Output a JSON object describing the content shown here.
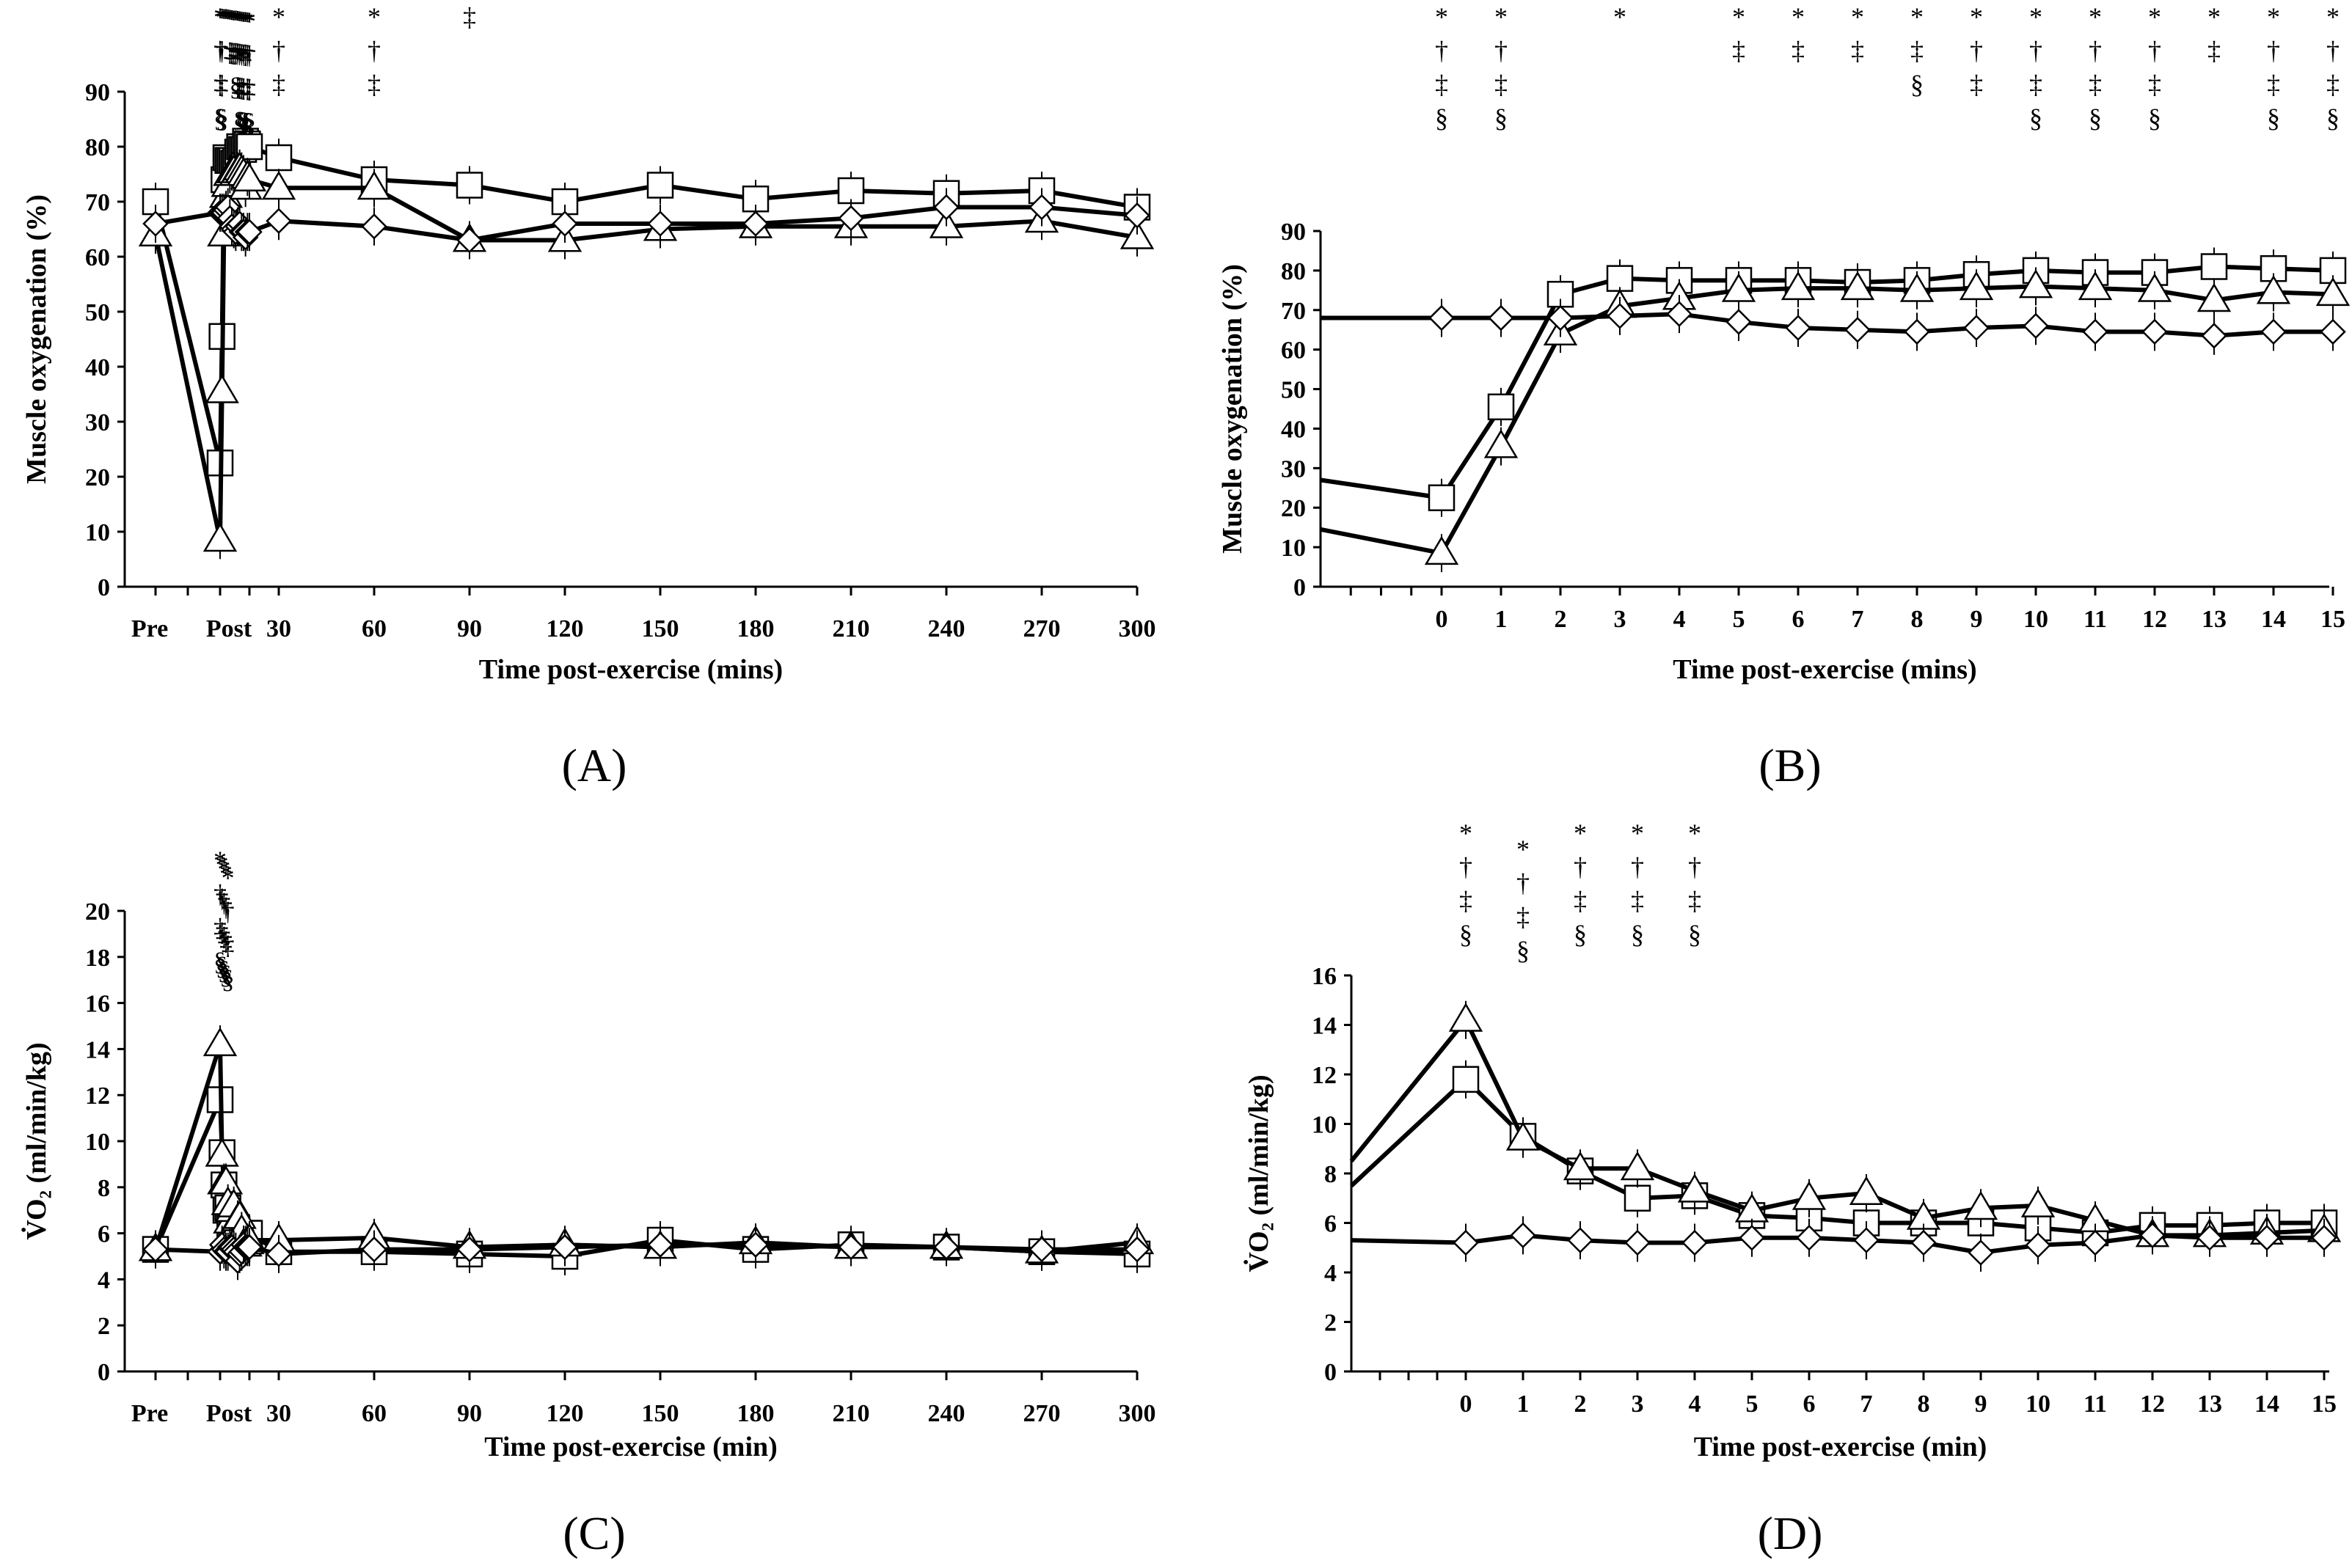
{
  "panel_labels": [
    "(A)",
    "(B)",
    "(C)",
    "(D)"
  ],
  "chart_data": [
    {
      "id": "A",
      "type": "line",
      "ylabel": "Muscle oxygenation (%)",
      "xlabel": "Time post-exercise (mins)",
      "ylim": [
        0,
        90
      ],
      "yticks": [
        "0",
        "10",
        "20",
        "30",
        "40",
        "50",
        "60",
        "70",
        "80",
        "90"
      ],
      "xtick_labels": [
        "Pre",
        "Post",
        "30",
        "60",
        "90",
        "120",
        "150",
        "180",
        "210",
        "240",
        "270",
        "300"
      ],
      "series": [
        {
          "name": "square",
          "marker": "square",
          "x": [
            -10,
            0,
            1,
            2,
            3,
            4,
            5,
            6,
            7,
            8,
            9,
            10,
            11,
            12,
            13,
            14,
            15,
            30,
            60,
            90,
            120,
            150,
            180,
            210,
            240,
            270,
            300
          ],
          "values": [
            70,
            22.5,
            45.5,
            74,
            78,
            77.5,
            77.5,
            77.5,
            77,
            77.5,
            79,
            80,
            79.5,
            79.5,
            81,
            80.5,
            80,
            78,
            74,
            73,
            70,
            73,
            70.5,
            72,
            71.5,
            72,
            69
          ]
        },
        {
          "name": "triangle",
          "marker": "triangle",
          "x": [
            -10,
            0,
            1,
            2,
            3,
            4,
            5,
            6,
            7,
            8,
            9,
            10,
            11,
            12,
            13,
            14,
            15,
            30,
            60,
            90,
            120,
            150,
            180,
            210,
            240,
            270,
            300
          ],
          "values": [
            64,
            8.5,
            35.5,
            64,
            71,
            73,
            75,
            75.5,
            75.5,
            75,
            75.5,
            76,
            75.5,
            75,
            72.5,
            74.5,
            74,
            72.5,
            72.5,
            63,
            63,
            65,
            65.5,
            65.5,
            65.5,
            66.5,
            63.5
          ]
        },
        {
          "name": "diamond",
          "marker": "diamond",
          "x": [
            -10,
            0,
            1,
            2,
            3,
            4,
            5,
            6,
            7,
            8,
            9,
            10,
            11,
            12,
            13,
            14,
            15,
            30,
            60,
            90,
            120,
            150,
            180,
            210,
            240,
            270,
            300
          ],
          "values": [
            66,
            68,
            68,
            68,
            68.5,
            69,
            67,
            65.5,
            65,
            64.5,
            65.5,
            66,
            64.5,
            64.5,
            63.5,
            64.5,
            64.5,
            66.5,
            65.5,
            63,
            66,
            66,
            66,
            67,
            69,
            69,
            67.5
          ]
        }
      ],
      "significance": [
        {
          "x": 0,
          "marks": [
            "*",
            "†",
            "‡",
            "§"
          ]
        },
        {
          "x": 1,
          "marks": [
            "*",
            "†",
            "‡",
            "§"
          ]
        },
        {
          "x": 2,
          "marks": [
            "*"
          ]
        },
        {
          "x": 3,
          "marks": [
            "*"
          ]
        },
        {
          "x": 4,
          "marks": [
            "*"
          ]
        },
        {
          "x": 5,
          "marks": [
            "*",
            "‡"
          ]
        },
        {
          "x": 6,
          "marks": [
            "*",
            "‡"
          ]
        },
        {
          "x": 7,
          "marks": [
            "*",
            "‡"
          ]
        },
        {
          "x": 8,
          "marks": [
            "*",
            "‡",
            "§"
          ]
        },
        {
          "x": 9,
          "marks": [
            "*",
            "†",
            "‡"
          ]
        },
        {
          "x": 10,
          "marks": [
            "*",
            "†",
            "‡",
            "§"
          ]
        },
        {
          "x": 11,
          "marks": [
            "*",
            "†",
            "‡",
            "§"
          ]
        },
        {
          "x": 12,
          "marks": [
            "*",
            "†",
            "‡",
            "§"
          ]
        },
        {
          "x": 13,
          "marks": [
            "*",
            "‡"
          ]
        },
        {
          "x": 14,
          "marks": [
            "*",
            "†",
            "‡",
            "§"
          ]
        },
        {
          "x": 15,
          "marks": [
            "*",
            "†",
            "‡",
            "§"
          ]
        },
        {
          "x": 30,
          "marks": [
            "*",
            "†",
            "‡"
          ]
        },
        {
          "x": 60,
          "marks": [
            "*",
            "†",
            "‡"
          ]
        },
        {
          "x": 90,
          "marks": [
            "‡"
          ]
        }
      ]
    },
    {
      "id": "B",
      "type": "line",
      "ylabel": "Muscle oxygenation (%)",
      "xlabel": "Time post-exercise (mins)",
      "ylim": [
        0,
        90
      ],
      "yticks": [
        "0",
        "10",
        "20",
        "30",
        "40",
        "50",
        "60",
        "70",
        "80",
        "90"
      ],
      "xtick_labels": [
        "0",
        "1",
        "2",
        "3",
        "4",
        "5",
        "6",
        "7",
        "8",
        "9",
        "10",
        "11",
        "12",
        "13",
        "14",
        "15"
      ],
      "series": [
        {
          "name": "square",
          "marker": "square",
          "x": [
            0,
            1,
            2,
            3,
            4,
            5,
            6,
            7,
            8,
            9,
            10,
            11,
            12,
            13,
            14,
            15
          ],
          "values": [
            22.5,
            45.5,
            74,
            78,
            77.5,
            77.5,
            77.5,
            77,
            77.5,
            79,
            80,
            79.5,
            79.5,
            81,
            80.5,
            80
          ],
          "lead_in": 27
        },
        {
          "name": "triangle",
          "marker": "triangle",
          "x": [
            0,
            1,
            2,
            3,
            4,
            5,
            6,
            7,
            8,
            9,
            10,
            11,
            12,
            13,
            14,
            15
          ],
          "values": [
            8.5,
            35.5,
            64,
            71,
            73,
            75,
            75.5,
            75.5,
            75,
            75.5,
            76,
            75.5,
            75,
            72.5,
            74.5,
            74
          ],
          "lead_in": 14.5
        },
        {
          "name": "diamond",
          "marker": "diamond",
          "x": [
            0,
            1,
            2,
            3,
            4,
            5,
            6,
            7,
            8,
            9,
            10,
            11,
            12,
            13,
            14,
            15
          ],
          "values": [
            68,
            68,
            68,
            68.5,
            69,
            67,
            65.5,
            65,
            64.5,
            65.5,
            66,
            64.5,
            64.5,
            63.5,
            64.5,
            64.5
          ],
          "lead_in": 68
        }
      ],
      "significance": [
        {
          "x": 0,
          "marks": [
            "*",
            "†",
            "‡",
            "§"
          ]
        },
        {
          "x": 1,
          "marks": [
            "*",
            "†",
            "‡",
            "§"
          ]
        },
        {
          "x": 3,
          "marks": [
            "*"
          ]
        },
        {
          "x": 5,
          "marks": [
            "*",
            "‡"
          ]
        },
        {
          "x": 6,
          "marks": [
            "*",
            "‡"
          ]
        },
        {
          "x": 7,
          "marks": [
            "*",
            "‡"
          ]
        },
        {
          "x": 8,
          "marks": [
            "*",
            "‡",
            "§"
          ]
        },
        {
          "x": 9,
          "marks": [
            "*",
            "†",
            "‡"
          ]
        },
        {
          "x": 10,
          "marks": [
            "*",
            "†",
            "‡",
            "§"
          ]
        },
        {
          "x": 11,
          "marks": [
            "*",
            "†",
            "‡",
            "§"
          ]
        },
        {
          "x": 12,
          "marks": [
            "*",
            "†",
            "‡",
            "§"
          ]
        },
        {
          "x": 13,
          "marks": [
            "*",
            "‡"
          ]
        },
        {
          "x": 14,
          "marks": [
            "*",
            "†",
            "‡",
            "§"
          ]
        },
        {
          "x": 15,
          "marks": [
            "*",
            "†",
            "‡",
            "§"
          ]
        }
      ]
    },
    {
      "id": "C",
      "type": "line",
      "ylabel": "V̇O₂ (ml/min/kg)",
      "xlabel": "Time post-exercise (min)",
      "ylim": [
        0,
        20
      ],
      "yticks": [
        "0",
        "2",
        "4",
        "6",
        "8",
        "10",
        "12",
        "14",
        "16",
        "18",
        "20"
      ],
      "xtick_labels": [
        "Pre",
        "Post",
        "30",
        "60",
        "90",
        "120",
        "150",
        "180",
        "210",
        "240",
        "270",
        "300"
      ],
      "series": [
        {
          "name": "square",
          "marker": "square",
          "x": [
            -10,
            0,
            1,
            2,
            3,
            4,
            5,
            6,
            7,
            8,
            9,
            10,
            11,
            12,
            13,
            14,
            15,
            30,
            60,
            90,
            120,
            150,
            180,
            210,
            240,
            270,
            300
          ],
          "values": [
            5.3,
            11.8,
            9.5,
            8.1,
            7,
            7.1,
            6.3,
            6.2,
            6,
            6,
            6,
            5.8,
            5.6,
            5.9,
            5.9,
            6,
            6,
            5.2,
            5.2,
            5.1,
            5,
            5.7,
            5.3,
            5.5,
            5.4,
            5.2,
            5.1
          ]
        },
        {
          "name": "triangle",
          "marker": "triangle",
          "x": [
            -10,
            0,
            1,
            2,
            3,
            4,
            5,
            6,
            7,
            8,
            9,
            10,
            11,
            12,
            13,
            14,
            15,
            30,
            60,
            90,
            120,
            150,
            180,
            210,
            240,
            270,
            300
          ],
          "values": [
            5.3,
            14.2,
            9.4,
            8.2,
            8.2,
            7.3,
            6.5,
            7,
            7.2,
            6.2,
            6.6,
            6.7,
            6.1,
            5.5,
            5.5,
            5.6,
            5.7,
            5.7,
            5.8,
            5.4,
            5.5,
            5.4,
            5.6,
            5.4,
            5.4,
            5.2,
            5.6
          ]
        },
        {
          "name": "diamond",
          "marker": "diamond",
          "x": [
            -10,
            0,
            1,
            2,
            3,
            4,
            5,
            6,
            7,
            8,
            9,
            10,
            11,
            12,
            13,
            14,
            15,
            30,
            60,
            90,
            120,
            150,
            180,
            210,
            240,
            270,
            300
          ],
          "values": [
            5.3,
            5.2,
            5.5,
            5.3,
            5.2,
            5.2,
            5.4,
            5.4,
            5.3,
            5.2,
            4.8,
            5.1,
            5.2,
            5.5,
            5.4,
            5.4,
            5.4,
            5.1,
            5.3,
            5.3,
            5.4,
            5.5,
            5.5,
            5.4,
            5.4,
            5.3,
            5.3
          ]
        }
      ],
      "significance": [
        {
          "x": 0,
          "marks": [
            "*",
            "†",
            "‡",
            "§"
          ]
        },
        {
          "x": 1,
          "marks": [
            "*",
            "†",
            "‡",
            "§"
          ]
        },
        {
          "x": 2,
          "marks": [
            "*",
            "†",
            "‡",
            "§"
          ]
        },
        {
          "x": 3,
          "marks": [
            "*",
            "†",
            "‡",
            "§"
          ]
        },
        {
          "x": 4,
          "marks": [
            "*",
            "†",
            "‡",
            "§"
          ]
        }
      ]
    },
    {
      "id": "D",
      "type": "line",
      "ylabel": "V̇O₂ (ml/min/kg)",
      "xlabel": "Time post-exercise (min)",
      "ylim": [
        0,
        16
      ],
      "yticks": [
        "0",
        "2",
        "4",
        "6",
        "8",
        "10",
        "12",
        "14",
        "16"
      ],
      "xtick_labels": [
        "0",
        "1",
        "2",
        "3",
        "4",
        "5",
        "6",
        "7",
        "8",
        "9",
        "10",
        "11",
        "12",
        "13",
        "14",
        "15"
      ],
      "series": [
        {
          "name": "square",
          "marker": "square",
          "x": [
            0,
            1,
            2,
            3,
            4,
            5,
            6,
            7,
            8,
            9,
            10,
            11,
            12,
            13,
            14,
            15
          ],
          "values": [
            11.8,
            9.5,
            8.1,
            7,
            7.1,
            6.3,
            6.2,
            6,
            6,
            6,
            5.8,
            5.6,
            5.9,
            5.9,
            6,
            6
          ],
          "lead_in": 7.5
        },
        {
          "name": "triangle",
          "marker": "triangle",
          "x": [
            0,
            1,
            2,
            3,
            4,
            5,
            6,
            7,
            8,
            9,
            10,
            11,
            12,
            13,
            14,
            15
          ],
          "values": [
            14.2,
            9.4,
            8.2,
            8.2,
            7.3,
            6.5,
            7,
            7.2,
            6.2,
            6.6,
            6.7,
            6.1,
            5.5,
            5.5,
            5.6,
            5.7
          ],
          "lead_in": 8.5
        },
        {
          "name": "diamond",
          "marker": "diamond",
          "x": [
            0,
            1,
            2,
            3,
            4,
            5,
            6,
            7,
            8,
            9,
            10,
            11,
            12,
            13,
            14,
            15
          ],
          "values": [
            5.2,
            5.5,
            5.3,
            5.2,
            5.2,
            5.4,
            5.4,
            5.3,
            5.2,
            4.8,
            5.1,
            5.2,
            5.5,
            5.4,
            5.4,
            5.4
          ],
          "lead_in": 5.3
        }
      ],
      "significance": [
        {
          "x": 0,
          "marks": [
            "*",
            "†",
            "‡",
            "§"
          ]
        },
        {
          "x": 1,
          "marks": [
            "*",
            "†",
            "‡",
            "§"
          ]
        },
        {
          "x": 2,
          "marks": [
            "*",
            "†",
            "‡",
            "§"
          ]
        },
        {
          "x": 3,
          "marks": [
            "*",
            "†",
            "‡",
            "§"
          ]
        },
        {
          "x": 4,
          "marks": [
            "*",
            "†",
            "‡",
            "§"
          ]
        }
      ]
    }
  ]
}
